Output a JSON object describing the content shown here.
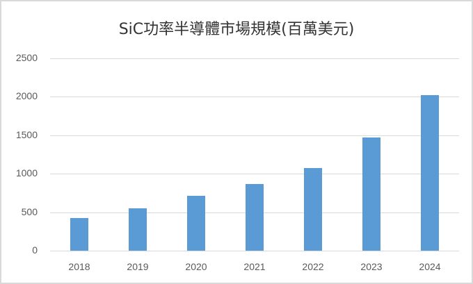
{
  "chart_data": {
    "type": "bar",
    "title": "SiC功率半導體市場規模(百萬美元)",
    "xlabel": "",
    "ylabel": "",
    "categories": [
      "2018",
      "2019",
      "2020",
      "2021",
      "2022",
      "2023",
      "2024"
    ],
    "values": [
      425,
      555,
      715,
      864,
      1076,
      1470,
      2025
    ],
    "ylim": [
      0,
      2500
    ],
    "yticks": [
      "0",
      "500",
      "1000",
      "1500",
      "2000",
      "2500"
    ],
    "grid": true,
    "legend": null,
    "bar_color": "#5b9bd5"
  }
}
